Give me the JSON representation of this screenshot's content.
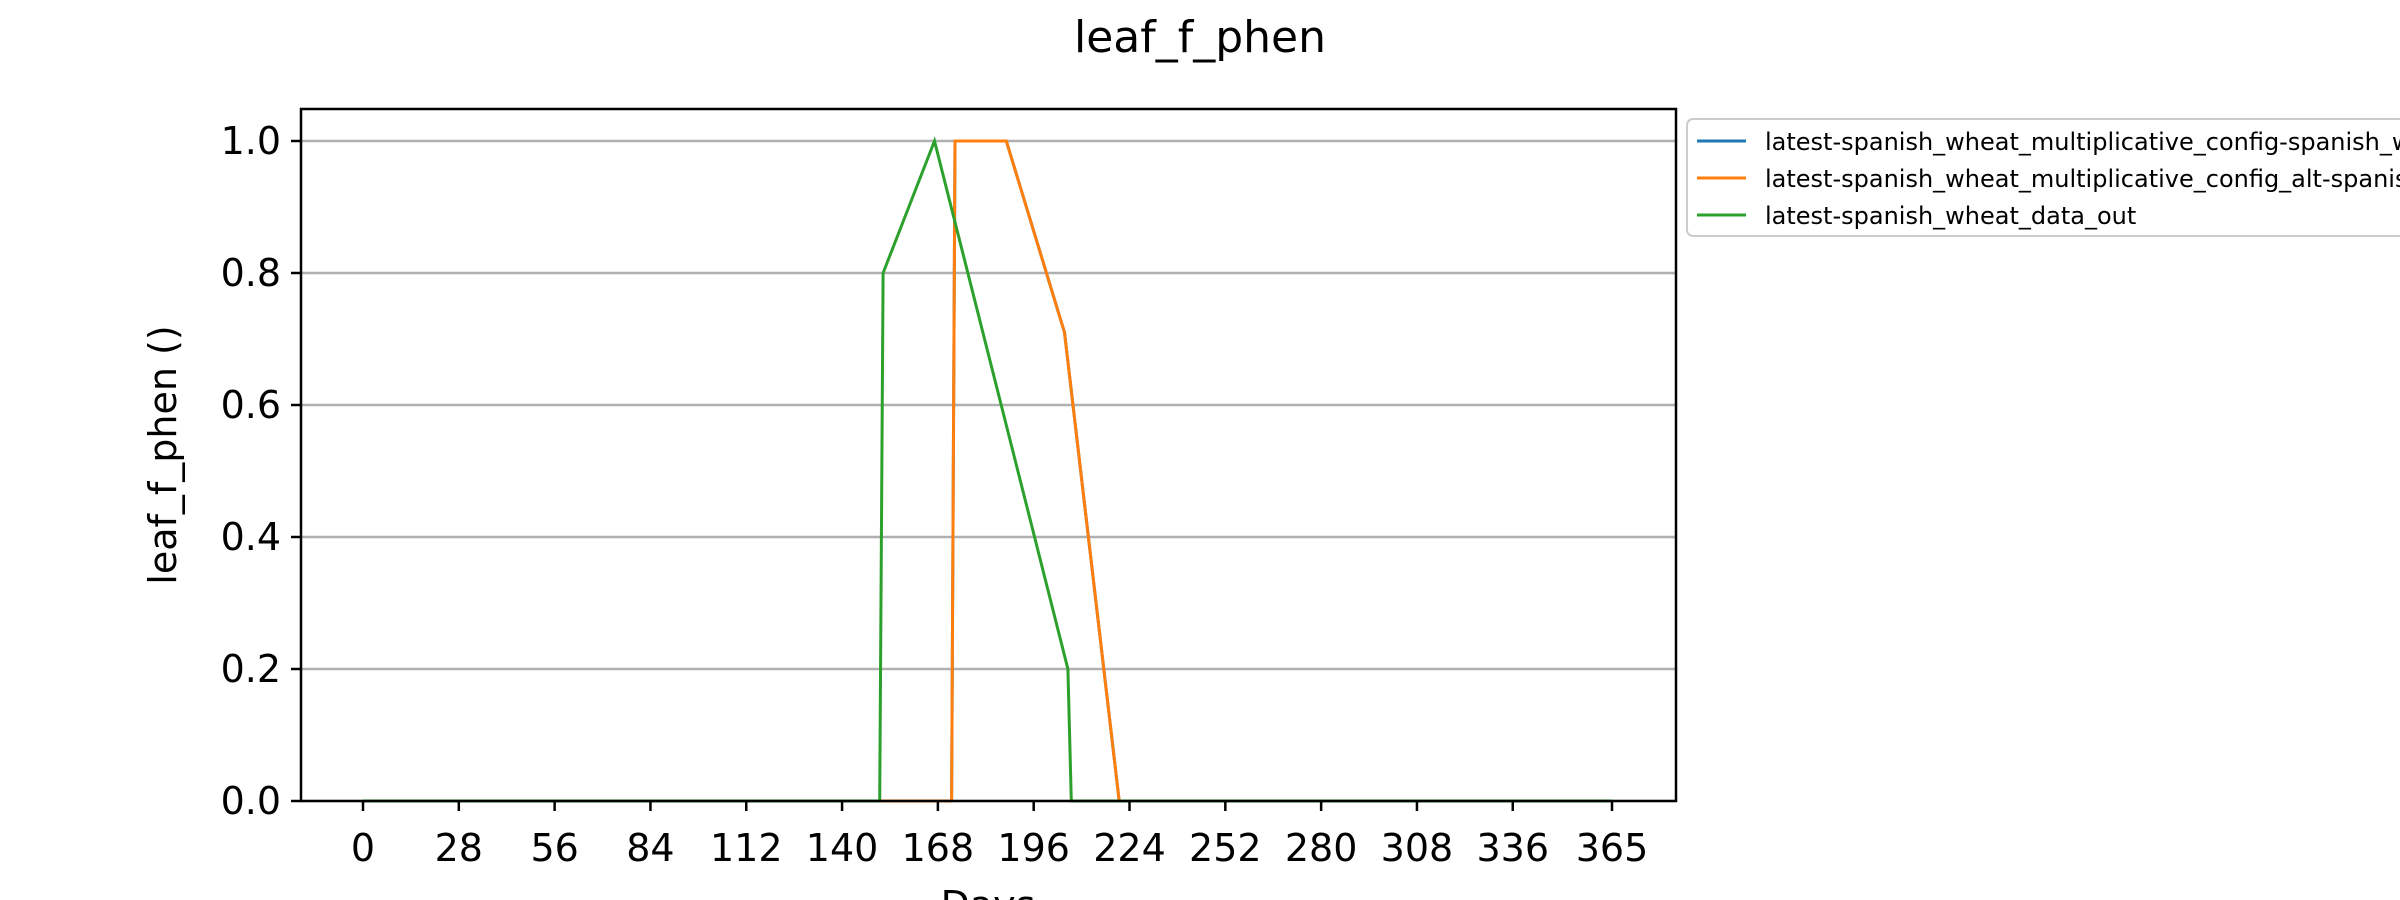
{
  "chart_data": {
    "type": "line",
    "title": "leaf_f_phen",
    "xlabel": "Days",
    "ylabel": "leaf_f_phen ()",
    "xlim": [
      -20,
      385
    ],
    "ylim": [
      0,
      1.05
    ],
    "grid": true,
    "grid_axis": "y",
    "legend_position": "outside-top-right",
    "xticks": [
      0,
      28,
      56,
      84,
      112,
      140,
      168,
      196,
      224,
      252,
      280,
      308,
      336,
      365
    ],
    "yticks": [
      0.0,
      0.2,
      0.4,
      0.6,
      0.8,
      1.0
    ],
    "ytick_labels": [
      "0.0",
      "0.2",
      "0.4",
      "0.6",
      "0.8",
      "1.0"
    ],
    "series": [
      {
        "name": "latest-spanish_wheat_multiplicative_config-spanish_wheat_data_out",
        "color": "#1f77b4",
        "x": [
          0,
          172,
          173,
          188,
          205,
          221,
          365
        ],
        "y": [
          0,
          0,
          1.0,
          1.0,
          0.71,
          0,
          0
        ]
      },
      {
        "name": "latest-spanish_wheat_multiplicative_config_alt-spanish_wheat_data_out",
        "color": "#ff7f0e",
        "x": [
          0,
          172,
          173,
          188,
          205,
          221,
          365
        ],
        "y": [
          0,
          0,
          1.0,
          1.0,
          0.71,
          0,
          0
        ]
      },
      {
        "name": "latest-spanish_wheat_data_out",
        "color": "#2ca02c",
        "x": [
          0,
          151,
          152,
          167,
          206,
          207,
          365
        ],
        "y": [
          0,
          0,
          0.8,
          1.0,
          0.2,
          0,
          0
        ]
      }
    ]
  }
}
